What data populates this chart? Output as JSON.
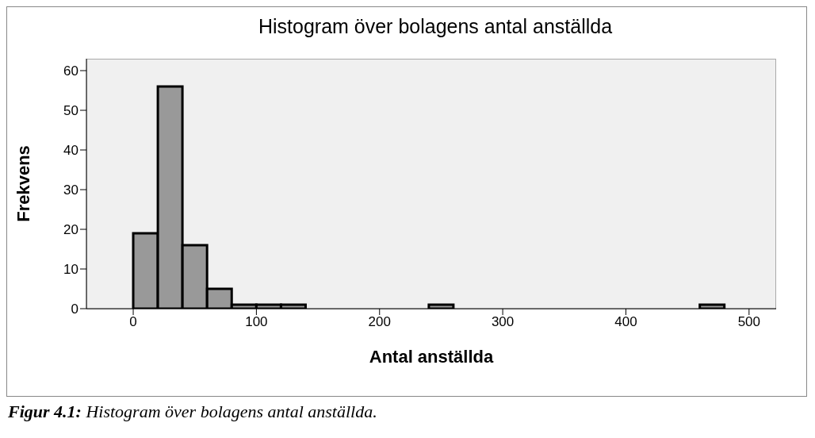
{
  "chart_data": {
    "type": "histogram",
    "title": "Histogram över bolagens antal anställda",
    "xlabel": "Antal anställda",
    "ylabel": "Frekvens",
    "bins": [
      0,
      20,
      40,
      60,
      80,
      100,
      120,
      140,
      160,
      180,
      200,
      220,
      240,
      260,
      280,
      300,
      320,
      340,
      360,
      380,
      400,
      420,
      440,
      460,
      480,
      500
    ],
    "values": [
      19,
      56,
      16,
      5,
      1,
      1,
      1,
      0,
      0,
      0,
      0,
      0,
      1,
      0,
      0,
      0,
      0,
      0,
      0,
      0,
      0,
      0,
      0,
      1,
      0
    ],
    "color": "#999999",
    "xlim": [
      -38,
      522
    ],
    "xticks": [
      0,
      100,
      200,
      300,
      400,
      500
    ],
    "ylim": [
      0,
      63
    ],
    "yticks": [
      0,
      10,
      20,
      30,
      40,
      50,
      60
    ],
    "grid": false,
    "annotations": [
      "Figur 4.1: Histogram över bolagens antal anställda."
    ]
  }
}
